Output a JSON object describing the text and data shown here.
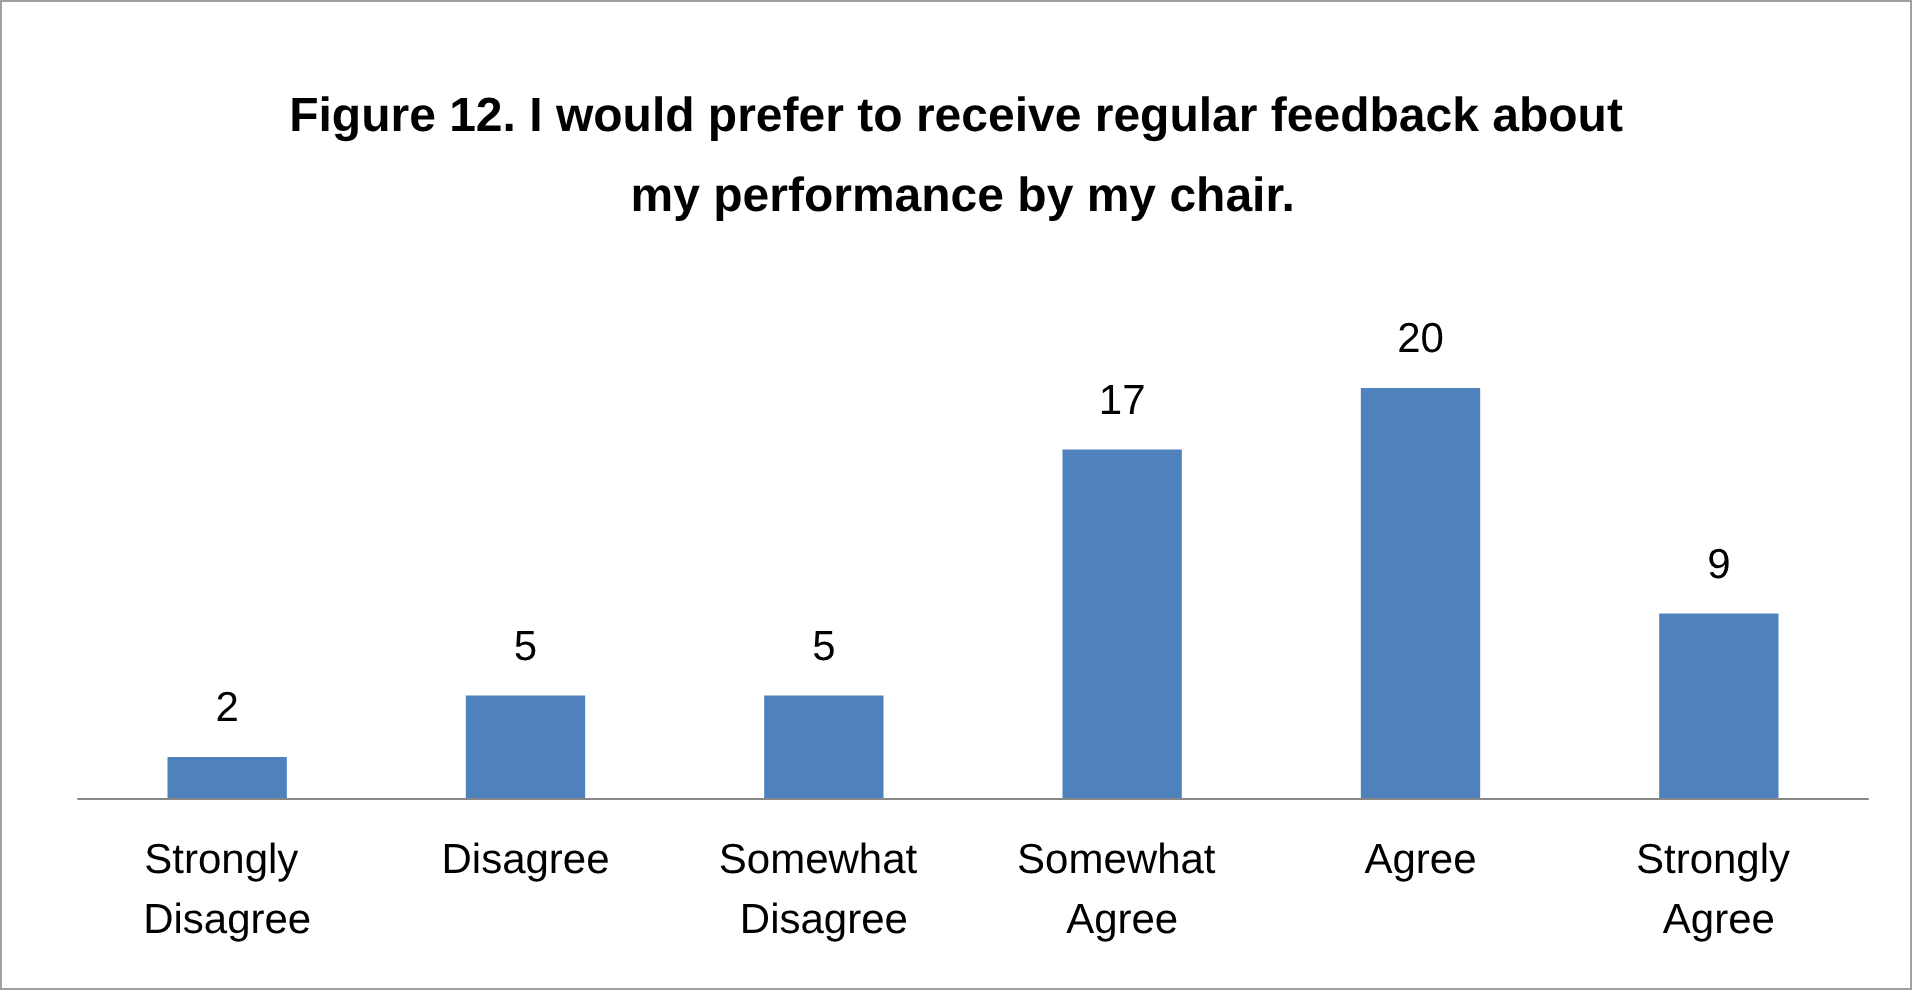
{
  "chart_data": {
    "type": "bar",
    "title": "Figure 12. I would prefer to receive regular feedback about my performance by my chair.",
    "categories": [
      "Strongly Disagree",
      "Disagree",
      "Somewhat Disagree",
      "Somewhat Agree",
      "Agree",
      "Strongly Agree"
    ],
    "values": [
      2,
      5,
      5,
      17,
      20,
      9
    ],
    "color": "#4f81bd",
    "data_labels": true
  }
}
